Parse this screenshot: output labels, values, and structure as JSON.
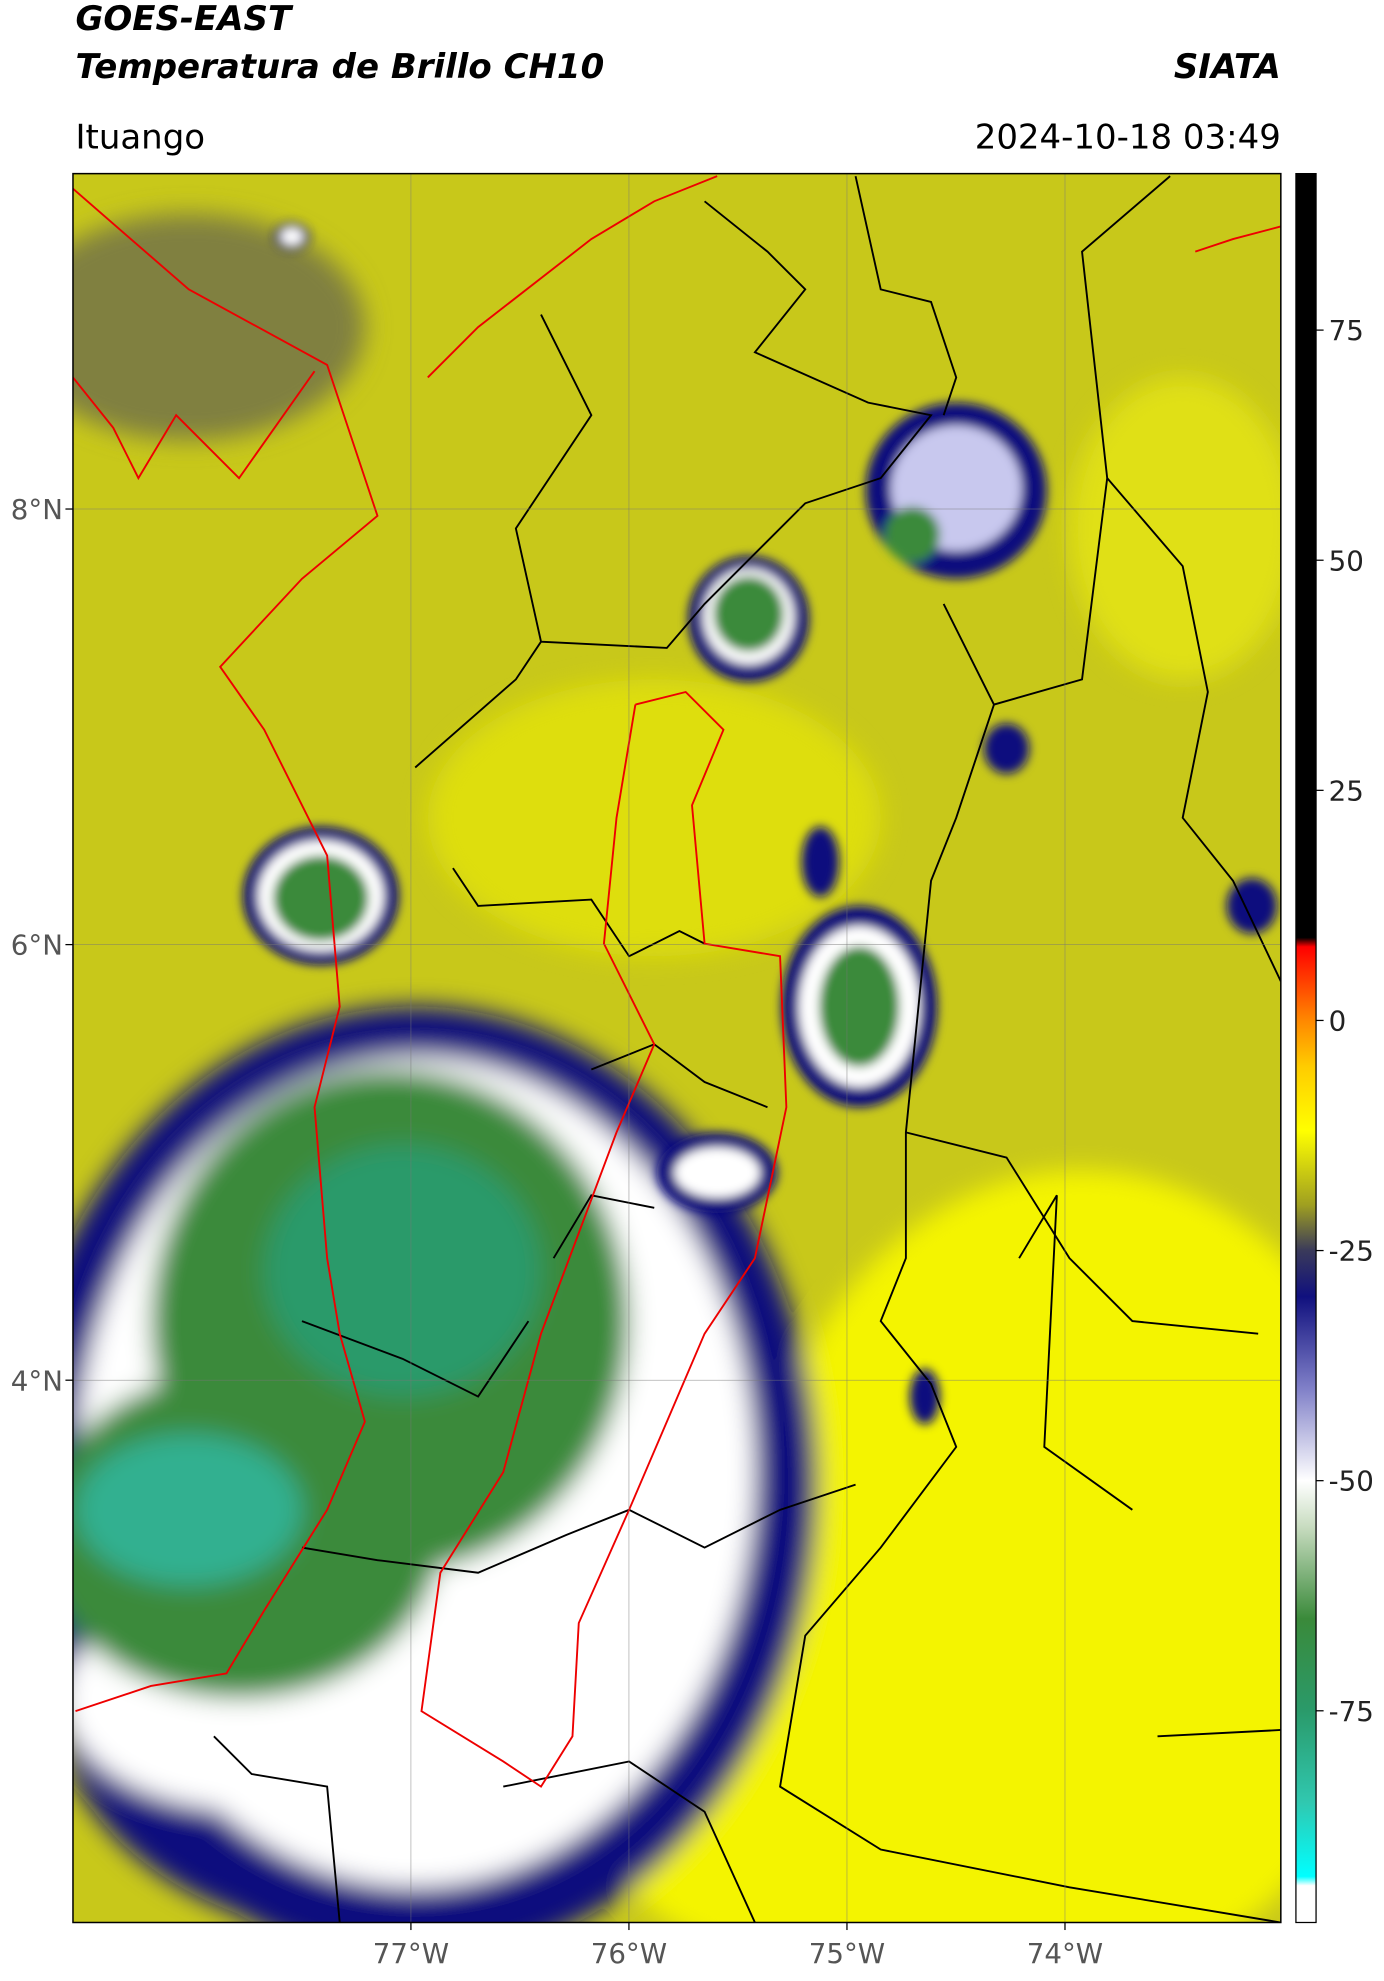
{
  "chart_data": {
    "type": "map",
    "title": "GOES-EAST",
    "subtitle": "Temperatura de Brillo CH10",
    "source": "SIATA",
    "location": "Ituango",
    "datetime": "2024-10-18 03:49",
    "xlim": [
      -78.55,
      -73.01
    ],
    "ylim": [
      1.51,
      9.54
    ],
    "xticks": [
      {
        "value": -77,
        "label": "77°W"
      },
      {
        "value": -76,
        "label": "76°W"
      },
      {
        "value": -75,
        "label": "75°W"
      },
      {
        "value": -74,
        "label": "74°W"
      }
    ],
    "yticks": [
      {
        "value": 4,
        "label": "4°N"
      },
      {
        "value": 6,
        "label": "6°N"
      },
      {
        "value": 8,
        "label": "8°N"
      }
    ],
    "grid": true,
    "colorbar": {
      "lim": [
        -98,
        92
      ],
      "ticks": [
        -75,
        -50,
        -25,
        0,
        25,
        50,
        75
      ],
      "stops": [
        {
          "value": -98,
          "color": "#ffffff"
        },
        {
          "value": -94,
          "color": "#ffffff"
        },
        {
          "value": -93,
          "color": "#00ffff"
        },
        {
          "value": -85,
          "color": "#30c8b0"
        },
        {
          "value": -75,
          "color": "#2a9a6a"
        },
        {
          "value": -65,
          "color": "#3a8a3a"
        },
        {
          "value": -55,
          "color": "#c8dcc0"
        },
        {
          "value": -50,
          "color": "#ffffff"
        },
        {
          "value": -40,
          "color": "#8080c8"
        },
        {
          "value": -30,
          "color": "#10107e"
        },
        {
          "value": -25,
          "color": "#3a3a5a"
        },
        {
          "value": -20,
          "color": "#a0a020"
        },
        {
          "value": -12,
          "color": "#ffff00"
        },
        {
          "value": -5,
          "color": "#ffcc00"
        },
        {
          "value": 0,
          "color": "#ff8800"
        },
        {
          "value": 8,
          "color": "#ff0000"
        },
        {
          "value": 9,
          "color": "#000000"
        },
        {
          "value": 92,
          "color": "#000000"
        }
      ]
    }
  }
}
